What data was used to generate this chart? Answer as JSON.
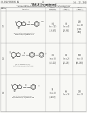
{
  "background_color": "#f5f5f0",
  "page_bg": "#f8f8f5",
  "header_left": "US 2014/0018391 A1",
  "header_right": "Jul. 22, 2014",
  "page_num": "72",
  "table_title": "TABLE 5-continued",
  "subtitle1": "In Vitro Inhibition of 11β-HSD1 Using Tritiated Cortisone as Substrate in",
  "subtitle2": "Microsomes from Human Adipocytes, Human Liver, and Mouse Liver",
  "col1_header": "Com-\npound",
  "col2_header": "Structure",
  "col3_header": "Human\nAdipocyte\nIC50 (nM)",
  "col4_header": "Human\nLiver\nIC50 (nM)",
  "col5_header": "Mouse\nLiver\nIC50 (nM)",
  "row1_cmpd": "11",
  "row1_col3": "8.4\n(n = 12)\n[1.8-47]",
  "row1_col4": "36\n(n = 4)\n[26-56]",
  "row1_col5": "260\n(n = 6)\n[150-\n430]",
  "row2_cmpd": "12",
  "row2_col3": "8.1\n(n = 3)\n[6.3-11]",
  "row2_col4": "22\n(n = 2)\n[21-23]",
  "row2_col5": "110\n(n = 3)\n[66-230]",
  "row3_cmpd": "13",
  "row3_col3": "14\n(n = 2)\n[12-17]",
  "row3_col4": "63\n(n = 1)",
  "row3_col5": "220\n(n = 1)",
  "line_color": "#888888",
  "text_color": "#222222",
  "struct_color": "#333333"
}
